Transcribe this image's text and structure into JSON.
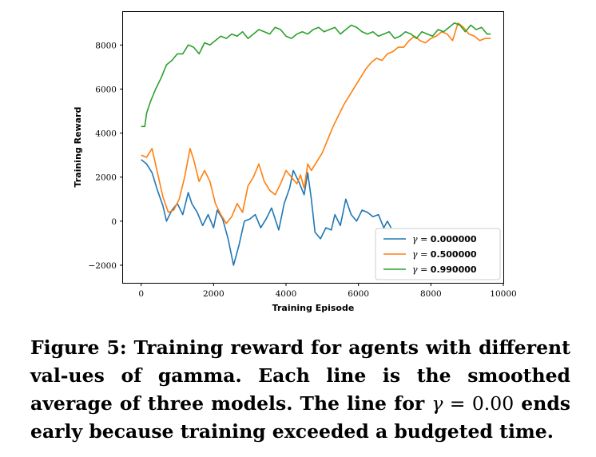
{
  "chart_data": {
    "type": "line",
    "title": "",
    "xlabel": "Training Episode",
    "ylabel": "Training Reward",
    "xlim": [
      -500,
      10000
    ],
    "ylim": [
      -2800,
      9500
    ],
    "xticks": [
      0,
      2000,
      4000,
      6000,
      8000,
      10000
    ],
    "xtick_labels": [
      "0",
      "2000",
      "4000",
      "6000",
      "8000",
      "10000"
    ],
    "yticks": [
      -2000,
      0,
      2000,
      4000,
      6000,
      8000
    ],
    "ytick_labels": [
      "−2000",
      "0",
      "2000",
      "4000",
      "6000",
      "8000"
    ],
    "grid": false,
    "legend_position": "lower-right",
    "series": [
      {
        "name": "γ = 0.000000",
        "legend_symbol": "γ",
        "legend_value": "0.000000",
        "color": "#1f77b4",
        "x": [
          0,
          150,
          300,
          450,
          600,
          700,
          850,
          1000,
          1150,
          1300,
          1400,
          1550,
          1700,
          1850,
          2000,
          2100,
          2250,
          2400,
          2550,
          2700,
          2850,
          3000,
          3150,
          3300,
          3450,
          3600,
          3800,
          3950,
          4100,
          4200,
          4350,
          4500,
          4600,
          4700,
          4800,
          4950,
          5100,
          5250,
          5350,
          5500,
          5650,
          5800,
          5950,
          6100,
          6250,
          6400,
          6550,
          6700,
          6800,
          6900
        ],
        "y": [
          2800,
          2600,
          2200,
          1400,
          700,
          0,
          500,
          800,
          300,
          1300,
          800,
          400,
          -200,
          300,
          -300,
          500,
          100,
          -800,
          -2000,
          -1100,
          0,
          100,
          300,
          -300,
          100,
          600,
          -400,
          800,
          1500,
          2300,
          1800,
          1200,
          2200,
          1000,
          -500,
          -800,
          -300,
          -400,
          300,
          -200,
          1000,
          300,
          0,
          500,
          400,
          200,
          300,
          -300,
          0,
          -300
        ]
      },
      {
        "name": "γ = 0.500000",
        "legend_symbol": "γ",
        "legend_value": "0.500000",
        "color": "#ff7f0e",
        "x": [
          0,
          150,
          300,
          450,
          600,
          750,
          900,
          1050,
          1200,
          1350,
          1450,
          1600,
          1750,
          1900,
          2050,
          2200,
          2350,
          2500,
          2650,
          2800,
          2950,
          3100,
          3250,
          3400,
          3550,
          3700,
          3850,
          4000,
          4150,
          4300,
          4400,
          4500,
          4600,
          4700,
          4850,
          5000,
          5150,
          5300,
          5450,
          5600,
          5750,
          5900,
          6050,
          6200,
          6350,
          6500,
          6650,
          6800,
          6950,
          7100,
          7250,
          7400,
          7550,
          7700,
          7850,
          8000,
          8150,
          8300,
          8450,
          8600,
          8750,
          8900,
          9050,
          9200,
          9350,
          9500,
          9650
        ],
        "y": [
          3000,
          2900,
          3300,
          2200,
          1100,
          400,
          500,
          1000,
          2000,
          3300,
          2800,
          1800,
          2300,
          1800,
          800,
          300,
          -100,
          200,
          800,
          400,
          1600,
          2000,
          2600,
          1800,
          1400,
          1200,
          1700,
          2300,
          2000,
          1700,
          2100,
          1500,
          2600,
          2300,
          2700,
          3100,
          3700,
          4300,
          4800,
          5300,
          5700,
          6100,
          6500,
          6900,
          7200,
          7400,
          7300,
          7600,
          7700,
          7900,
          7900,
          8200,
          8400,
          8200,
          8100,
          8300,
          8400,
          8600,
          8500,
          8200,
          9000,
          8800,
          8500,
          8400,
          8200,
          8300,
          8300
        ]
      },
      {
        "name": "γ = 0.990000",
        "legend_symbol": "γ",
        "legend_value": "0.990000",
        "color": "#2ca02c",
        "x": [
          0,
          100,
          150,
          250,
          400,
          550,
          700,
          850,
          1000,
          1150,
          1300,
          1450,
          1600,
          1750,
          1900,
          2050,
          2200,
          2350,
          2500,
          2650,
          2800,
          2950,
          3100,
          3250,
          3400,
          3550,
          3700,
          3850,
          4000,
          4150,
          4300,
          4450,
          4600,
          4750,
          4900,
          5050,
          5200,
          5350,
          5500,
          5650,
          5800,
          5950,
          6100,
          6250,
          6400,
          6550,
          6700,
          6850,
          7000,
          7150,
          7300,
          7450,
          7600,
          7750,
          7900,
          8050,
          8200,
          8350,
          8500,
          8650,
          8800,
          8950,
          9100,
          9250,
          9400,
          9550,
          9650
        ],
        "y": [
          4300,
          4300,
          4900,
          5400,
          6000,
          6500,
          7100,
          7300,
          7600,
          7600,
          8000,
          7900,
          7600,
          8100,
          8000,
          8200,
          8400,
          8300,
          8500,
          8400,
          8600,
          8300,
          8500,
          8700,
          8600,
          8500,
          8800,
          8700,
          8400,
          8300,
          8500,
          8600,
          8500,
          8700,
          8800,
          8600,
          8700,
          8800,
          8500,
          8700,
          8900,
          8800,
          8600,
          8500,
          8600,
          8400,
          8500,
          8600,
          8300,
          8400,
          8600,
          8500,
          8300,
          8600,
          8500,
          8400,
          8700,
          8600,
          8800,
          9000,
          8900,
          8600,
          8900,
          8700,
          8800,
          8500,
          8500
        ]
      }
    ]
  },
  "caption": {
    "part1": "Figure 5: Training reward for agents with different val-ues of gamma.  Each line is the smoothed average of three models. The line for ",
    "math_symbol": "γ",
    "math_eq": " = ",
    "math_value": "0.00",
    "part2": " ends early because training exceeded a budgeted time."
  }
}
